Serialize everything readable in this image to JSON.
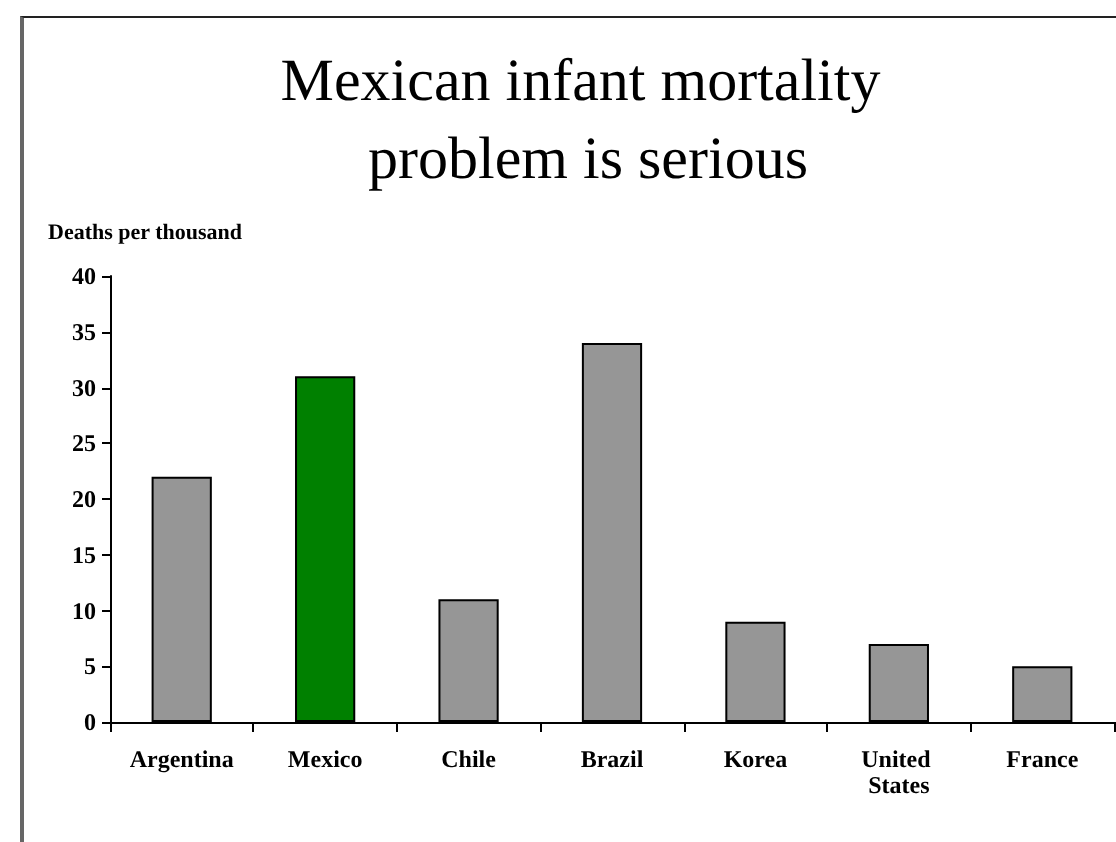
{
  "chart_data": {
    "type": "bar",
    "title": "Mexican infant mortality problem is serious",
    "ylabel": "Deaths per thousand",
    "categories": [
      "Argentina",
      "Mexico",
      "Chile",
      "Brazil",
      "Korea",
      "United States",
      "France"
    ],
    "values": [
      22,
      31,
      11,
      34,
      9,
      7,
      5
    ],
    "colors": [
      "#969696",
      "#008000",
      "#969696",
      "#969696",
      "#969696",
      "#969696",
      "#969696"
    ],
    "ylim": [
      0,
      40
    ],
    "yticks": [
      0,
      5,
      10,
      15,
      20,
      25,
      30,
      35,
      40
    ]
  }
}
